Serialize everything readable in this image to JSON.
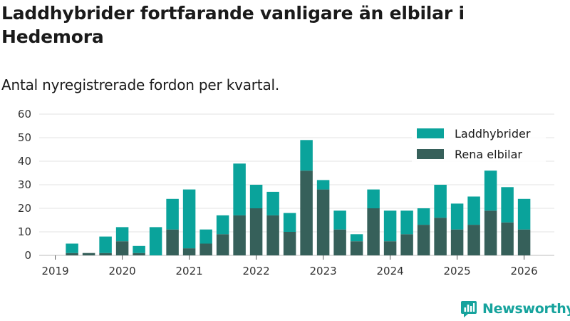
{
  "header": {
    "title": "Laddhybrider fortfarande vanligare än elbilar i Hedemora",
    "subtitle": "Antal nyregistrerade fordon per kvartal."
  },
  "brand": {
    "name": "Newsworthy"
  },
  "chart_data": {
    "type": "bar",
    "stacked": true,
    "title": "Laddhybrider fortfarande vanligare än elbilar i Hedemora",
    "subtitle": "Antal nyregistrerade fordon per kvartal.",
    "xlabel": "",
    "ylabel": "",
    "ylim": [
      0,
      60
    ],
    "yticks": [
      0,
      10,
      20,
      30,
      40,
      50,
      60
    ],
    "xticks": [
      "2019",
      "2020",
      "2021",
      "2022",
      "2023",
      "2024",
      "2025",
      "2026"
    ],
    "categories": [
      "2019 Q1",
      "2019 Q2",
      "2019 Q3",
      "2019 Q4",
      "2020 Q1",
      "2020 Q2",
      "2020 Q3",
      "2020 Q4",
      "2021 Q1",
      "2021 Q2",
      "2021 Q3",
      "2021 Q4",
      "2022 Q1",
      "2022 Q2",
      "2022 Q3",
      "2022 Q4",
      "2023 Q1",
      "2023 Q2",
      "2023 Q3",
      "2023 Q4",
      "2024 Q1",
      "2024 Q2",
      "2024 Q3",
      "2024 Q4",
      "2025 Q1",
      "2025 Q2",
      "2025 Q3",
      "2025 Q4",
      "2026 Q1"
    ],
    "series": [
      {
        "name": "Rena elbilar",
        "color": "#36605a",
        "values": [
          0,
          1,
          1,
          1,
          6,
          1,
          0,
          11,
          3,
          5,
          9,
          17,
          20,
          17,
          10,
          36,
          28,
          11,
          6,
          20,
          6,
          9,
          13,
          16,
          11,
          13,
          19,
          14,
          11
        ]
      },
      {
        "name": "Laddhybrider",
        "color": "#0aa39b",
        "values": [
          0,
          4,
          0,
          7,
          6,
          3,
          12,
          13,
          25,
          6,
          8,
          22,
          10,
          10,
          8,
          13,
          4,
          8,
          3,
          8,
          13,
          10,
          7,
          14,
          11,
          12,
          17,
          15,
          13
        ]
      }
    ],
    "legend_order": [
      "Laddhybrider",
      "Rena elbilar"
    ],
    "legend_position": "top-right",
    "grid": true
  }
}
